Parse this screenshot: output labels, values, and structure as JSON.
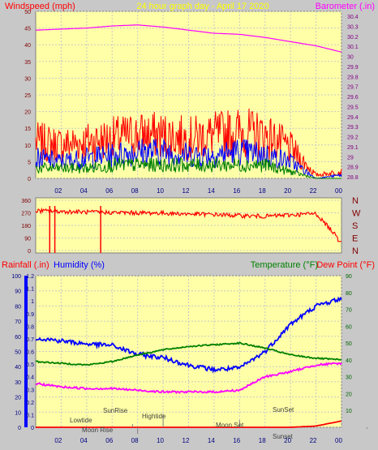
{
  "header": {
    "left_label": "Windspeed (mph)",
    "title": "24 hour graph day - April 17 2020",
    "right_label": "Barometer (.in)"
  },
  "colors": {
    "background": "#c8c8c8",
    "plot_bg": "#ffffa8",
    "red": "#ff0000",
    "blue": "#0000ff",
    "green": "#008000",
    "magenta": "#ff00ff",
    "title_yellow": "#ffff00",
    "axis_dark_red": "#800000",
    "axis_dark_blue": "#000080",
    "axis_dark_green": "#006400"
  },
  "x_ticks": [
    "02",
    "04",
    "06",
    "08",
    "10",
    "12",
    "14",
    "16",
    "18",
    "20",
    "22",
    "00"
  ],
  "panel_wind": {
    "left_ticks": [
      "50",
      "45",
      "40",
      "35",
      "30",
      "25",
      "20",
      "15",
      "10",
      "5",
      "0"
    ],
    "right_ticks": [
      "30.4",
      "30.3",
      "30.2",
      "30.1",
      "30",
      "29.9",
      "29.8",
      "29.7",
      "29.6",
      "29.5",
      "29.4",
      "29.3",
      "29.2",
      "29.1",
      "29",
      "28.9",
      "28.8"
    ]
  },
  "panel_dir": {
    "left_ticks": [
      "360",
      "270",
      "180",
      "90",
      "0"
    ],
    "right_labels": [
      "N",
      "W",
      "S",
      "E",
      "N"
    ]
  },
  "panel_temp": {
    "left_red_label": "Rainfall (.in)",
    "left_blue_label": "Humidity (%)",
    "right_green_label": "Temperature (°F)",
    "right_red_label": "Dew Point (°F)",
    "rain_ticks": [
      "1.2",
      "1.1",
      "1",
      "0.9",
      "0.8",
      "0.7",
      "0.6",
      "0.5",
      "0.4",
      "0.3",
      "0.2",
      "0.1",
      "0"
    ],
    "hum_ticks": [
      "100",
      "90",
      "80",
      "70",
      "60",
      "50",
      "40",
      "30",
      "20",
      "10",
      "0"
    ],
    "temp_ticks": [
      "90",
      "80",
      "70",
      "60",
      "50",
      "40",
      "30",
      "20",
      "10"
    ],
    "events": [
      "Lowtide",
      "Moon Rise",
      "SunRise",
      "Hightide",
      "Moon Set",
      "SunSet",
      "Sunset"
    ]
  },
  "chart_data": [
    {
      "type": "line",
      "x": [
        "00",
        "02",
        "04",
        "06",
        "08",
        "10",
        "12",
        "14",
        "16",
        "18",
        "20",
        "22",
        "00"
      ],
      "series": [
        {
          "values": [
            30.22,
            30.23,
            30.24,
            30.26,
            30.27,
            30.25,
            30.22,
            30.19,
            30.18,
            30.15,
            30.11,
            30.07,
            30.01
          ]
        }
      ],
      "ylim": [
        28.8,
        30.4
      ]
    },
    {
      "type": "line",
      "x": [
        "00",
        "02",
        "04",
        "06",
        "08",
        "10",
        "12",
        "14",
        "16",
        "18",
        "20",
        "22",
        "00"
      ],
      "series": [
        {
          "values": [
            11,
            10,
            11,
            12,
            13,
            13,
            12,
            13,
            14,
            13,
            9,
            1,
            2
          ]
        },
        {
          "values": [
            6,
            5,
            6,
            7,
            8,
            8,
            7,
            7,
            8,
            7,
            5,
            0,
            1
          ]
        },
        {
          "values": [
            3,
            3,
            3,
            4,
            4,
            4,
            4,
            4,
            4,
            4,
            2,
            0,
            0
          ]
        }
      ],
      "ylim": [
        0,
        50
      ]
    },
    {
      "type": "line",
      "x": [
        "00",
        "02",
        "04",
        "06",
        "08",
        "10",
        "12",
        "14",
        "16",
        "18",
        "20",
        "22",
        "00"
      ],
      "series": [
        {
          "values": [
            285,
            280,
            275,
            272,
            270,
            268,
            262,
            258,
            250,
            245,
            255,
            265,
            65
          ]
        }
      ],
      "ylim": [
        0,
        360
      ]
    },
    {
      "type": "line",
      "x": [
        "00",
        "02",
        "04",
        "06",
        "08",
        "10",
        "12",
        "14",
        "16",
        "18",
        "20",
        "22",
        "00"
      ],
      "series": [
        {
          "values": [
            59,
            57,
            55,
            54,
            48,
            46,
            41,
            38,
            39,
            50,
            68,
            80,
            85
          ]
        },
        {
          "values": [
            39,
            38,
            37,
            39,
            43,
            46,
            48,
            49,
            50,
            47,
            43,
            41,
            40
          ]
        },
        {
          "values": [
            26,
            24,
            23,
            23,
            22,
            21,
            21,
            21,
            22,
            30,
            33,
            37,
            38
          ]
        },
        {
          "values": [
            0,
            0,
            0,
            0,
            0,
            0,
            0,
            0,
            0,
            0,
            0,
            0.01,
            0.05
          ]
        }
      ],
      "ylim_humidity": [
        0,
        100
      ],
      "ylim_temperature": [
        0,
        90
      ],
      "ylim_rainfall": [
        0,
        1.2
      ]
    }
  ]
}
